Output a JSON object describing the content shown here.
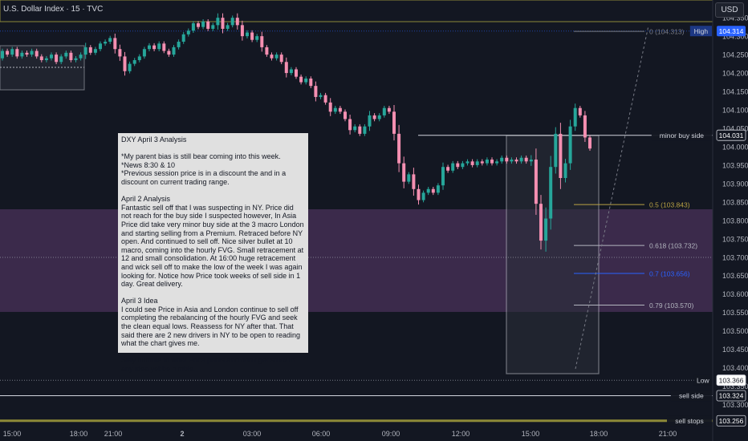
{
  "title": "U.S. Dollar Index · 15 · TVC",
  "currency_button": "USD",
  "chart_data": {
    "type": "candlestick",
    "ylim": [
      103.256,
      104.35
    ],
    "y_ticks": [
      104.35,
      104.3,
      104.25,
      104.2,
      104.15,
      104.1,
      104.05,
      104.0,
      103.95,
      103.9,
      103.85,
      103.8,
      103.75,
      103.7,
      103.65,
      103.6,
      103.55,
      103.5,
      103.45,
      103.4,
      103.35,
      103.3
    ],
    "x_ticks": [
      {
        "label": "15:00",
        "bold": false
      },
      {
        "label": "18:00",
        "bold": false
      },
      {
        "label": "21:00",
        "bold": false
      },
      {
        "label": "2",
        "bold": true
      },
      {
        "label": "03:00",
        "bold": false
      },
      {
        "label": "06:00",
        "bold": false
      },
      {
        "label": "09:00",
        "bold": false
      },
      {
        "label": "12:00",
        "bold": false
      },
      {
        "label": "15:00",
        "bold": false
      },
      {
        "label": "18:00",
        "bold": false
      },
      {
        "label": "21:00",
        "bold": false
      }
    ],
    "price_labels": [
      {
        "name": "High",
        "value": "104.314",
        "color": "#2962ff"
      },
      {
        "name": "minor buy side",
        "value": "104.031",
        "color": "#ffffff"
      },
      {
        "name": "Low",
        "value": "103.366",
        "color": "#131722"
      },
      {
        "name": "sell side",
        "value": "103.324",
        "color": "#ffffff"
      },
      {
        "name": "sell stops",
        "value": "103.256",
        "color": "#ffffff"
      }
    ],
    "fib_levels": [
      {
        "label": "0 (104.313)",
        "value": 104.313,
        "color": "#787b86"
      },
      {
        "label": "0.5 (103.843)",
        "value": 103.843,
        "color": "#b9a244"
      },
      {
        "label": "0.618 (103.732)",
        "value": 103.732,
        "color": "#b2b5be"
      },
      {
        "label": "0.7 (103.656)",
        "value": 103.656,
        "color": "#2962ff"
      },
      {
        "label": "0.79 (103.570)",
        "value": 103.57,
        "color": "#b2b5be"
      }
    ],
    "candles_description": "15m OHLC candles, green up #26a69a, pink down #f48fb1",
    "colors": {
      "up": "#26a69a",
      "down": "#f48fb1",
      "zone": "#5d3a6e",
      "box": "#b2b5be"
    }
  },
  "note": {
    "text": "DXY April 3 Analysis\n\n*My parent bias is still bear coming into this week.\n*News 8:30 & 10\n*Previous session price is in a discount the and in a discount on current trading range.\n\nApril 2 Analysis\nFantastic sell off that I was suspecting in NY. Price did not reach for the buy side I suspected however, In Asia Price did take very minor buy side at the 3 macro London and starting selling from a Premium. Retraced before NY open. And continued to sell off. Nice silver bullet at 10 macro, coming into the hourly FVG. Small retracement at 12 and small consolidation. At 16:00 huge retracement and wick sell off to make the low of the week I was again looking for. Notice how Price took weeks of sell side in 1 day. Great delivery.\n\nApril 3 Idea\nI could see Price in Asia and London continue to sell off completing the rebalancing of the hourly FVG and seek the clean equal lows. Reassess for NY after that. That said there are 2 new drivers in NY to be open to reading what the chart gives me.\n\nStay humble to what Price prints and don't get stuck in any idea yet be nimble."
  }
}
